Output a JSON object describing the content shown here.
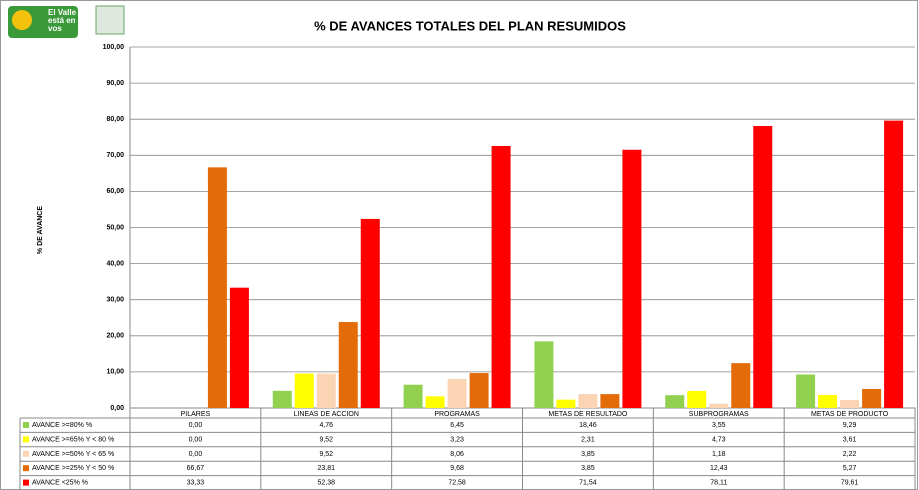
{
  "logo": [
    "El Valle",
    "está en",
    "vos"
  ],
  "chart_data": {
    "type": "bar",
    "title": "% DE AVANCES TOTALES DEL PLAN RESUMIDOS",
    "y_label": "% DE AVANCE",
    "categories": [
      "PILARES",
      "LINEAS DE ACCION",
      "PROGRAMAS",
      "METAS DE RESULTADO",
      "SUBPROGRAMAS",
      "METAS DE PRODUCTO"
    ],
    "ylim": [
      0,
      100
    ],
    "yticks": [
      {
        "value": 0,
        "label": "0,00"
      },
      {
        "value": 10,
        "label": "10,00"
      },
      {
        "value": 20,
        "label": "20,00"
      },
      {
        "value": 30,
        "label": "30,00"
      },
      {
        "value": 40,
        "label": "40,00"
      },
      {
        "value": 50,
        "label": "50,00"
      },
      {
        "value": 60,
        "label": "60,00"
      },
      {
        "value": 70,
        "label": "70,00"
      },
      {
        "value": 80,
        "label": "80,00"
      },
      {
        "value": 90,
        "label": "90,00"
      },
      {
        "value": 100,
        "label": "100,00"
      }
    ],
    "grid": true,
    "series": [
      {
        "name": "AVANCE >=80%  %",
        "color": "#92d050",
        "values": [
          0,
          4.76,
          6.45,
          18.46,
          3.55,
          9.29
        ],
        "value_labels": [
          "0,00",
          "4,76",
          "6,45",
          "18,46",
          "3,55",
          "9,29"
        ]
      },
      {
        "name": "AVANCE >=65% Y < 80 %",
        "color": "#ffff00",
        "values": [
          0,
          9.52,
          3.23,
          2.31,
          4.73,
          3.61
        ],
        "value_labels": [
          "0,00",
          "9,52",
          "3,23",
          "2,31",
          "4,73",
          "3,61"
        ]
      },
      {
        "name": "AVANCE >=50% Y < 65 %",
        "color": "#fbd4b4",
        "values": [
          0,
          9.52,
          8.06,
          3.85,
          1.18,
          2.22
        ],
        "value_labels": [
          "0,00",
          "9,52",
          "8,06",
          "3,85",
          "1,18",
          "2,22"
        ]
      },
      {
        "name": "AVANCE >=25% Y < 50 %",
        "color": "#e36c09",
        "values": [
          66.67,
          23.81,
          9.68,
          3.85,
          12.43,
          5.27
        ],
        "value_labels": [
          "66,67",
          "23,81",
          "9,68",
          "3,85",
          "12,43",
          "5,27"
        ]
      },
      {
        "name": "AVANCE <25%  %",
        "color": "#ff0000",
        "values": [
          33.33,
          52.38,
          72.58,
          71.54,
          78.11,
          79.61
        ],
        "value_labels": [
          "33,33",
          "52,38",
          "72,58",
          "71,54",
          "78,11",
          "79,61"
        ]
      }
    ]
  }
}
